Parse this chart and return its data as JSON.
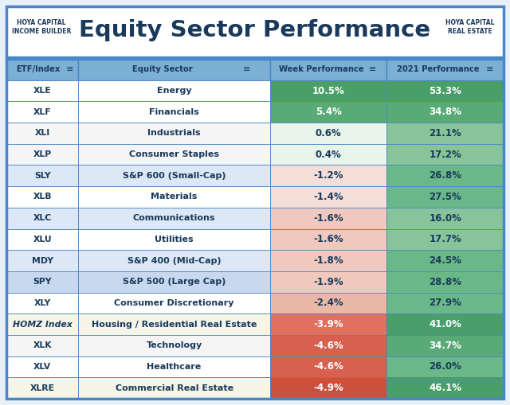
{
  "title": "Equity Sector Performance",
  "header": [
    "ETF/Index",
    "Equity Sector",
    "Week Performance",
    "2021 Performance"
  ],
  "rows": [
    [
      "XLE",
      "Energy",
      "10.5%",
      "53.3%"
    ],
    [
      "XLF",
      "Financials",
      "5.4%",
      "34.8%"
    ],
    [
      "XLI",
      "Industrials",
      "0.6%",
      "21.1%"
    ],
    [
      "XLP",
      "Consumer Staples",
      "0.4%",
      "17.2%"
    ],
    [
      "SLY",
      "S&P 600 (Small-Cap)",
      "-1.2%",
      "26.8%"
    ],
    [
      "XLB",
      "Materials",
      "-1.4%",
      "27.5%"
    ],
    [
      "XLC",
      "Communications",
      "-1.6%",
      "16.0%"
    ],
    [
      "XLU",
      "Utilities",
      "-1.6%",
      "17.7%"
    ],
    [
      "MDY",
      "S&P 400 (Mid-Cap)",
      "-1.8%",
      "24.5%"
    ],
    [
      "SPY",
      "S&P 500 (Large Cap)",
      "-1.9%",
      "28.8%"
    ],
    [
      "XLY",
      "Consumer Discretionary",
      "-2.4%",
      "27.9%"
    ],
    [
      "HOMZ Index",
      "Housing / Residential Real Estate",
      "-3.9%",
      "41.0%"
    ],
    [
      "XLK",
      "Technology",
      "-4.6%",
      "34.7%"
    ],
    [
      "XLV",
      "Healthcare",
      "-4.6%",
      "26.0%"
    ],
    [
      "XLRE",
      "Commercial Real Estate",
      "-4.9%",
      "46.1%"
    ]
  ],
  "week_values": [
    10.5,
    5.4,
    0.6,
    0.4,
    -1.2,
    -1.4,
    -1.6,
    -1.6,
    -1.8,
    -1.9,
    -2.4,
    -3.9,
    -4.6,
    -4.6,
    -4.9
  ],
  "year_values": [
    53.3,
    34.8,
    21.1,
    17.2,
    26.8,
    27.5,
    16.0,
    17.7,
    24.5,
    28.8,
    27.9,
    41.0,
    34.7,
    26.0,
    46.1
  ],
  "header_bg": "#7bafd4",
  "header_text": "#1a3a5c",
  "title_color": "#1a3a5c",
  "border_color": "#4a86c8",
  "row_bg_white": "#ffffff",
  "row_bg_light_blue": "#dce8f5",
  "row_bg_light_gray_blue": "#e8eef5",
  "row_bg_spy": "#c8d8ee",
  "row_bg_homz": "#eeeee0",
  "row_bg_xlre": "#f0ece0",
  "title_bg": "#e8f0f8",
  "fig_bg": "#e8f0f8",
  "week_colors": [
    "#4a9e6a",
    "#5aaa78",
    "#e8f5ea",
    "#e8f5ea",
    "#f5ddd8",
    "#f5ddd8",
    "#f0c8be",
    "#f0c8be",
    "#f0c8be",
    "#f0c8be",
    "#ebb8a8",
    "#e07060",
    "#d86050",
    "#d86050",
    "#cc5040"
  ],
  "week_text_colors": [
    "#ffffff",
    "#ffffff",
    "#1a3a5c",
    "#1a3a5c",
    "#1a3a5c",
    "#1a3a5c",
    "#1a3a5c",
    "#1a3a5c",
    "#1a3a5c",
    "#1a3a5c",
    "#1a3a5c",
    "#ffffff",
    "#ffffff",
    "#ffffff",
    "#ffffff"
  ],
  "year_colors": [
    "#4a9e6a",
    "#5aaa78",
    "#88c499",
    "#88c499",
    "#6ab888",
    "#6ab888",
    "#88c499",
    "#88c499",
    "#6ab888",
    "#6ab888",
    "#6ab888",
    "#4a9e6a",
    "#5aaa78",
    "#6ab888",
    "#4a9e6a"
  ],
  "year_text_colors": [
    "#ffffff",
    "#ffffff",
    "#1a3a5c",
    "#1a3a5c",
    "#1a3a5c",
    "#1a3a5c",
    "#1a3a5c",
    "#1a3a5c",
    "#1a3a5c",
    "#1a3a5c",
    "#1a3a5c",
    "#ffffff",
    "#ffffff",
    "#1a3a5c",
    "#ffffff"
  ],
  "row_bgs": [
    "#ffffff",
    "#ffffff",
    "#f5f5f5",
    "#f5f5f5",
    "#dce8f5",
    "#ffffff",
    "#dce8f5",
    "#ffffff",
    "#dce8f5",
    "#c8d8ee",
    "#ffffff",
    "#f5f5e8",
    "#f5f5f5",
    "#ffffff",
    "#f5f5e8"
  ]
}
